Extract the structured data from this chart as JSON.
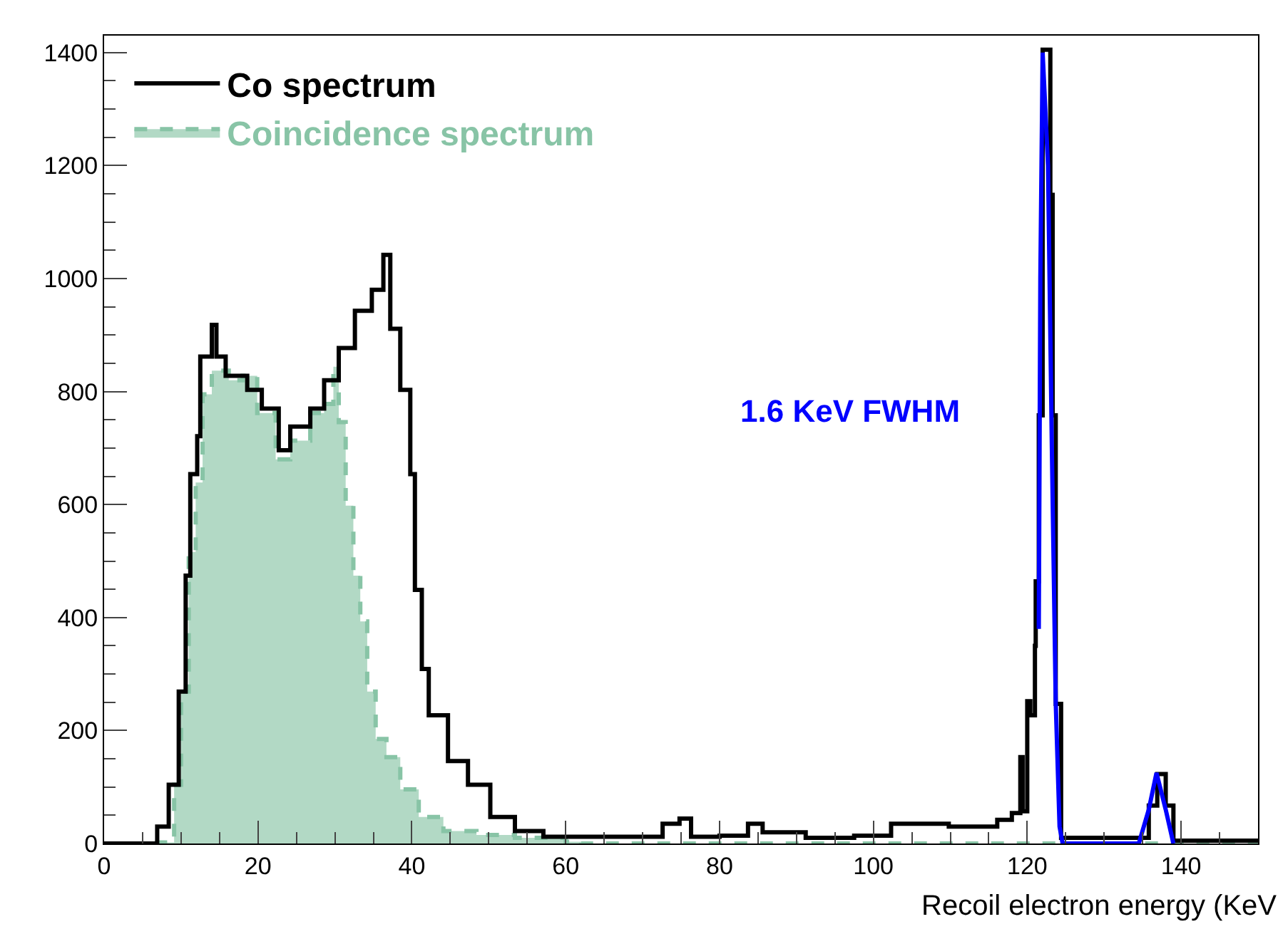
{
  "chart_data": {
    "type": "step",
    "xlabel": "Recoil electron energy (KeV",
    "xlim": [
      0,
      150
    ],
    "xticks": [
      0,
      20,
      40,
      60,
      80,
      100,
      120,
      140
    ],
    "ylim": [
      0,
      1430
    ],
    "yticks": [
      0,
      200,
      400,
      600,
      800,
      1000,
      1200,
      1400
    ],
    "legend": "top left",
    "annotations": [
      "1.6 KeV FWHM"
    ],
    "series": [
      {
        "name": "Co spectrum",
        "color": "#000000",
        "line_style": "solid",
        "x": [
          0,
          5.6,
          6.9,
          8.4,
          9.7,
          10.6,
          11.2,
          12.1,
          12.5,
          14,
          14.6,
          15.8,
          18.6,
          20.5,
          22.7,
          24.2,
          26.8,
          28.6,
          30.5,
          32.6,
          34.8,
          36.3,
          37.2,
          38.5,
          39.8,
          40.4,
          41.3,
          42.2,
          44.7,
          47.3,
          50.2,
          53.4,
          57.1,
          70.1,
          72.6,
          74.8,
          76.3,
          80,
          83.7,
          85.6,
          91.2,
          97.5,
          102.3,
          109.8,
          116.1,
          118,
          119.1,
          119.4,
          120,
          120.4,
          121,
          121.1,
          121.5,
          122,
          123,
          123.3,
          123.7,
          124.4,
          134.3,
          135.8,
          136.9,
          138,
          139,
          150
        ],
        "values": [
          0,
          0,
          30,
          104,
          269,
          474,
          654,
          721,
          862,
          918,
          862,
          828,
          803,
          770,
          696,
          738,
          770,
          820,
          877,
          943,
          980,
          1042,
          911,
          803,
          654,
          449,
          309,
          227,
          146,
          104,
          47,
          22,
          12,
          12,
          35,
          44,
          12,
          14,
          35,
          20,
          10,
          14,
          35,
          30,
          42,
          54,
          153,
          57,
          252,
          227,
          350,
          464,
          758,
          1405,
          1148,
          758,
          247,
          10,
          10,
          67,
          123,
          67,
          5,
          3
        ]
      },
      {
        "name": "Coincidence spectrum",
        "type": "area",
        "color": "#88c4a6",
        "line_style": "dashed",
        "x": [
          0,
          6,
          6.9,
          9.1,
          10,
          11,
          11.9,
          12.8,
          14,
          16.2,
          18,
          19.9,
          22.3,
          24.2,
          26.8,
          28.6,
          29.8,
          30.5,
          31.4,
          32.4,
          33.3,
          34.2,
          35.3,
          36.7,
          38.5,
          40.9,
          44.1,
          48.4,
          53.4,
          60,
          62,
          150
        ],
        "values": [
          0,
          0,
          2,
          104,
          269,
          516,
          639,
          795,
          837,
          820,
          828,
          762,
          680,
          713,
          762,
          778,
          844,
          746,
          598,
          474,
          393,
          269,
          185,
          153,
          96,
          47,
          22,
          15,
          10,
          3,
          0,
          0
        ]
      },
      {
        "type": "line",
        "color": "#0000ff",
        "line_style": "solid",
        "x": [
          121.5,
          121.7,
          122,
          122.7,
          123.2,
          123.7,
          124.2,
          124.6,
          134.5,
          135.8,
          136.8,
          138,
          139
        ],
        "values": [
          380,
          1000,
          1400,
          1200,
          700,
          250,
          30,
          0,
          0,
          60,
          125,
          60,
          0
        ]
      }
    ]
  }
}
